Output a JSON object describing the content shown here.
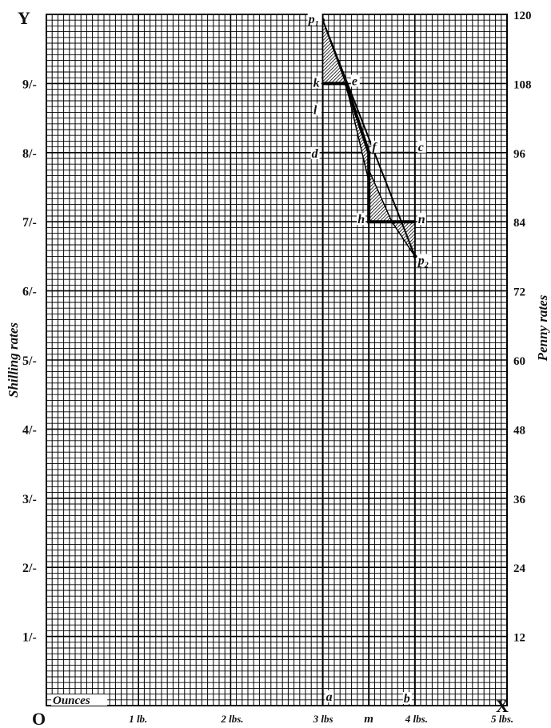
{
  "chart_data": {
    "type": "line",
    "axis_letters": {
      "origin": "O",
      "y_axis": "Y",
      "x_axis": "X"
    },
    "x_ticks": [
      {
        "value": 1,
        "label": "1 lb."
      },
      {
        "value": 2,
        "label": "2 lbs."
      },
      {
        "value": 3,
        "label": "3 lbs"
      },
      {
        "value": 4,
        "label": "4 lbs."
      },
      {
        "value": 5,
        "label": "5 lbs."
      }
    ],
    "x_extra_label": {
      "value": 3.5,
      "label": "m"
    },
    "x_range": [
      0,
      5
    ],
    "ounces_label": "Ounces",
    "left_axis": {
      "title": "Shilling rates",
      "ticks": [
        {
          "value": 12,
          "label": "1/-"
        },
        {
          "value": 24,
          "label": "2/-"
        },
        {
          "value": 36,
          "label": "3/-"
        },
        {
          "value": 48,
          "label": "4/-"
        },
        {
          "value": 60,
          "label": "5/-"
        },
        {
          "value": 72,
          "label": "6/-"
        },
        {
          "value": 84,
          "label": "7/-"
        },
        {
          "value": 96,
          "label": "8/-"
        },
        {
          "value": 108,
          "label": "9/-"
        }
      ]
    },
    "right_axis": {
      "title": "Penny rates",
      "ticks": [
        {
          "value": 12,
          "label": "12"
        },
        {
          "value": 24,
          "label": "24"
        },
        {
          "value": 36,
          "label": "36"
        },
        {
          "value": 48,
          "label": "48"
        },
        {
          "value": 60,
          "label": "60"
        },
        {
          "value": 72,
          "label": "72"
        },
        {
          "value": 84,
          "label": "84"
        },
        {
          "value": 96,
          "label": "96"
        },
        {
          "value": 108,
          "label": "108"
        },
        {
          "value": 120,
          "label": "120"
        }
      ]
    },
    "y_range": [
      0,
      120
    ],
    "grid": true,
    "series": [
      {
        "points": [
          [
            3,
            119
          ],
          [
            4,
            78
          ]
        ]
      }
    ],
    "step_line": [
      [
        3,
        108
      ],
      [
        3.25,
        108
      ],
      [
        3.5,
        96
      ],
      [
        3.5,
        84
      ],
      [
        4,
        84
      ]
    ],
    "shaded_triangles": [
      [
        [
          3,
          119
        ],
        [
          3,
          108
        ],
        [
          3.25,
          108
        ]
      ],
      [
        [
          3.25,
          108
        ],
        [
          3.5,
          96
        ],
        [
          3.5,
          91
        ]
      ],
      [
        [
          3.5,
          93
        ],
        [
          3.5,
          84
        ],
        [
          3.75,
          84
        ]
      ],
      [
        [
          3.75,
          84
        ],
        [
          4,
          84
        ],
        [
          4,
          78
        ]
      ]
    ],
    "guide_lines": [
      [
        [
          3,
          96
        ],
        [
          4,
          96
        ]
      ],
      [
        [
          4,
          96
        ],
        [
          4,
          0
        ]
      ],
      [
        [
          3,
          120
        ],
        [
          3,
          0
        ]
      ],
      [
        [
          3.5,
          96
        ],
        [
          3.5,
          0
        ]
      ]
    ],
    "point_labels": [
      {
        "text": "p1",
        "x": 3,
        "y": 119
      },
      {
        "text": "k",
        "x": 3,
        "y": 108
      },
      {
        "text": "e",
        "x": 3.28,
        "y": 108
      },
      {
        "text": "l",
        "x": 3.02,
        "y": 103
      },
      {
        "text": "d",
        "x": 3,
        "y": 96
      },
      {
        "text": "f",
        "x": 3.5,
        "y": 96
      },
      {
        "text": "c",
        "x": 4,
        "y": 96
      },
      {
        "text": "h",
        "x": 3.5,
        "y": 84
      },
      {
        "text": "n",
        "x": 4,
        "y": 84
      },
      {
        "text": "p2",
        "x": 4,
        "y": 78
      },
      {
        "text": "a",
        "x": 3,
        "y": 0
      },
      {
        "text": "b",
        "x": 4,
        "y": 0
      }
    ]
  }
}
